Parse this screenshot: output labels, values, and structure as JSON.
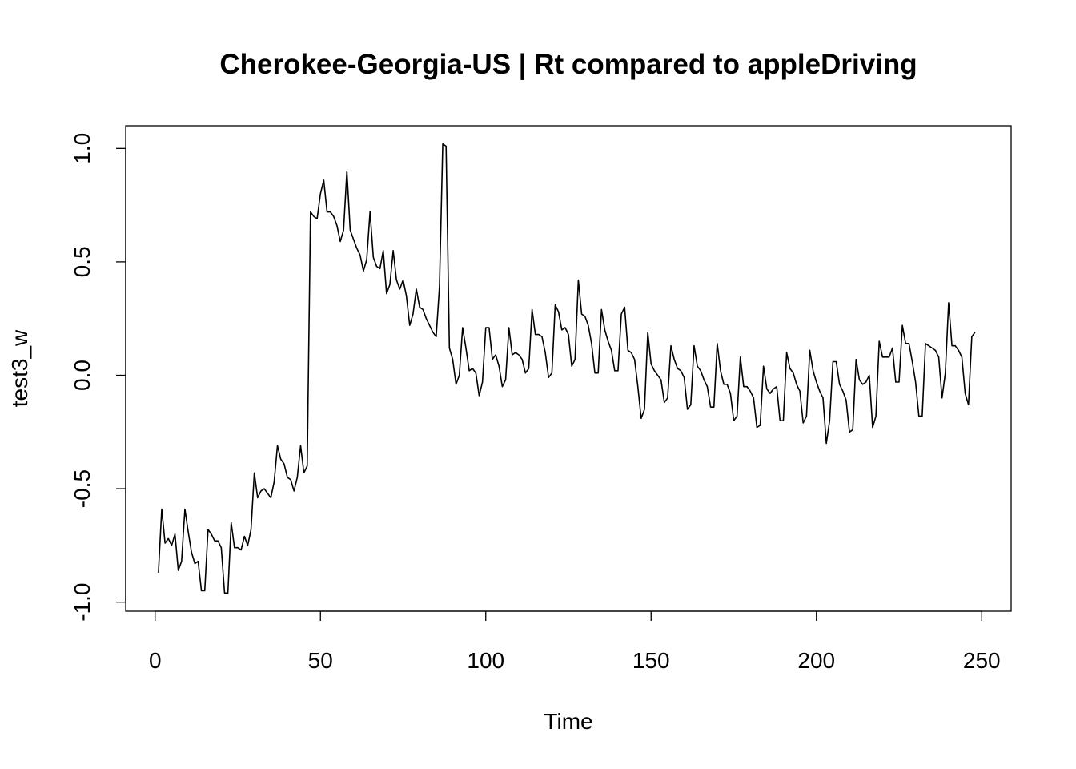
{
  "chart_data": {
    "type": "line",
    "title": "Cherokee-Georgia-US | Rt compared to appleDriving",
    "xlabel": "Time",
    "ylabel": "test3_w",
    "xlim": [
      -8.9,
      258.9
    ],
    "ylim": [
      -1.04,
      1.1
    ],
    "x_ticks": [
      0,
      50,
      100,
      150,
      200,
      250
    ],
    "y_ticks": [
      -1.0,
      -0.5,
      0.0,
      0.5,
      1.0
    ],
    "x_tick_labels": [
      "0",
      "50",
      "100",
      "150",
      "200",
      "250"
    ],
    "y_tick_labels": [
      "-1.0",
      "-0.5",
      "0.0",
      "0.5",
      "1.0"
    ],
    "grid": false,
    "series": [
      {
        "x_start": 1,
        "values": [
          -0.87,
          -0.59,
          -0.74,
          -0.72,
          -0.75,
          -0.7,
          -0.86,
          -0.82,
          -0.59,
          -0.69,
          -0.78,
          -0.83,
          -0.82,
          -0.95,
          -0.95,
          -0.68,
          -0.7,
          -0.73,
          -0.73,
          -0.76,
          -0.96,
          -0.96,
          -0.65,
          -0.76,
          -0.76,
          -0.77,
          -0.71,
          -0.75,
          -0.68,
          -0.43,
          -0.54,
          -0.51,
          -0.5,
          -0.52,
          -0.54,
          -0.47,
          -0.31,
          -0.37,
          -0.39,
          -0.45,
          -0.46,
          -0.51,
          -0.45,
          -0.31,
          -0.43,
          -0.4,
          0.72,
          0.7,
          0.69,
          0.8,
          0.86,
          0.72,
          0.72,
          0.7,
          0.66,
          0.59,
          0.64,
          0.9,
          0.64,
          0.6,
          0.56,
          0.53,
          0.46,
          0.51,
          0.72,
          0.52,
          0.48,
          0.47,
          0.55,
          0.36,
          0.4,
          0.55,
          0.42,
          0.38,
          0.42,
          0.35,
          0.22,
          0.27,
          0.38,
          0.3,
          0.29,
          0.25,
          0.22,
          0.19,
          0.17,
          0.39,
          1.02,
          1.01,
          0.12,
          0.07,
          -0.04,
          0.0,
          0.21,
          0.12,
          0.02,
          0.03,
          0.01,
          -0.09,
          -0.03,
          0.21,
          0.21,
          0.07,
          0.09,
          0.04,
          -0.05,
          -0.02,
          0.21,
          0.09,
          0.1,
          0.09,
          0.07,
          0.01,
          0.03,
          0.29,
          0.18,
          0.18,
          0.17,
          0.1,
          -0.01,
          0.01,
          0.31,
          0.28,
          0.2,
          0.21,
          0.18,
          0.04,
          0.07,
          0.42,
          0.27,
          0.26,
          0.22,
          0.14,
          0.01,
          0.01,
          0.29,
          0.2,
          0.15,
          0.11,
          0.02,
          0.02,
          0.27,
          0.3,
          0.11,
          0.1,
          0.07,
          -0.05,
          -0.19,
          -0.15,
          0.19,
          0.05,
          0.02,
          0.0,
          -0.02,
          -0.12,
          -0.1,
          0.13,
          0.07,
          0.03,
          0.02,
          -0.01,
          -0.15,
          -0.13,
          0.13,
          0.04,
          0.02,
          -0.02,
          -0.05,
          -0.14,
          -0.14,
          0.14,
          0.02,
          -0.04,
          -0.04,
          -0.08,
          -0.2,
          -0.18,
          0.08,
          -0.05,
          -0.05,
          -0.07,
          -0.1,
          -0.23,
          -0.22,
          0.04,
          -0.06,
          -0.08,
          -0.06,
          -0.05,
          -0.2,
          -0.2,
          0.1,
          0.03,
          0.01,
          -0.04,
          -0.07,
          -0.21,
          -0.18,
          0.11,
          0.02,
          -0.03,
          -0.07,
          -0.1,
          -0.3,
          -0.2,
          0.06,
          0.06,
          -0.04,
          -0.07,
          -0.11,
          -0.25,
          -0.24,
          0.07,
          -0.02,
          -0.04,
          -0.03,
          0.0,
          -0.23,
          -0.18,
          0.15,
          0.08,
          0.08,
          0.08,
          0.12,
          -0.03,
          -0.03,
          0.22,
          0.14,
          0.14,
          0.06,
          -0.03,
          -0.18,
          -0.18,
          0.14,
          0.13,
          0.12,
          0.11,
          0.08,
          -0.1,
          0.01,
          0.32,
          0.13,
          0.13,
          0.11,
          0.08,
          -0.08,
          -0.13,
          0.17,
          0.19
        ]
      }
    ]
  }
}
